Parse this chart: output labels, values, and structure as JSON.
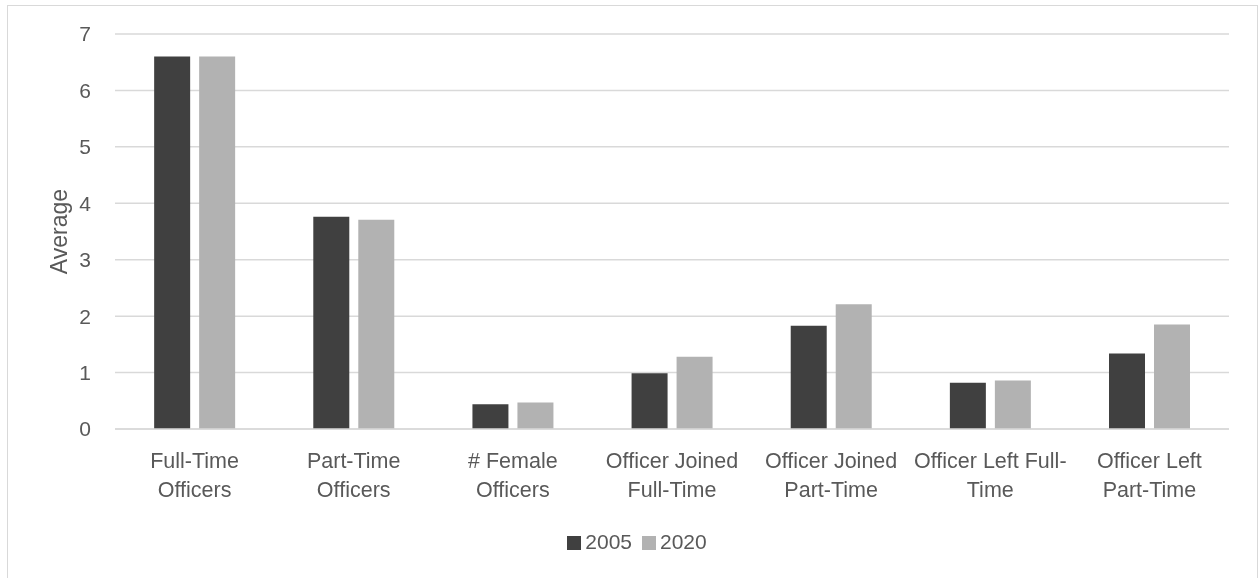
{
  "chart_data": {
    "type": "bar",
    "ylabel": "Average",
    "categories": [
      "Full-Time Officers",
      "Part-Time Officers",
      "# Female Officers",
      "Officer Joined Full-Time",
      "Officer Joined Part-Time",
      "Officer Left Full-Time",
      "Officer Left Part-Time"
    ],
    "series": [
      {
        "name": "2005",
        "color": "#404040",
        "values": [
          6.6,
          3.76,
          0.44,
          0.99,
          1.83,
          0.82,
          1.34
        ]
      },
      {
        "name": "2020",
        "color": "#b2b2b2",
        "values": [
          6.6,
          3.71,
          0.47,
          1.28,
          2.21,
          0.86,
          1.85
        ]
      }
    ],
    "ylim": [
      0,
      7
    ],
    "yticks": [
      0,
      1,
      2,
      3,
      4,
      5,
      6,
      7
    ],
    "grid": "y",
    "legend": "bottom"
  }
}
